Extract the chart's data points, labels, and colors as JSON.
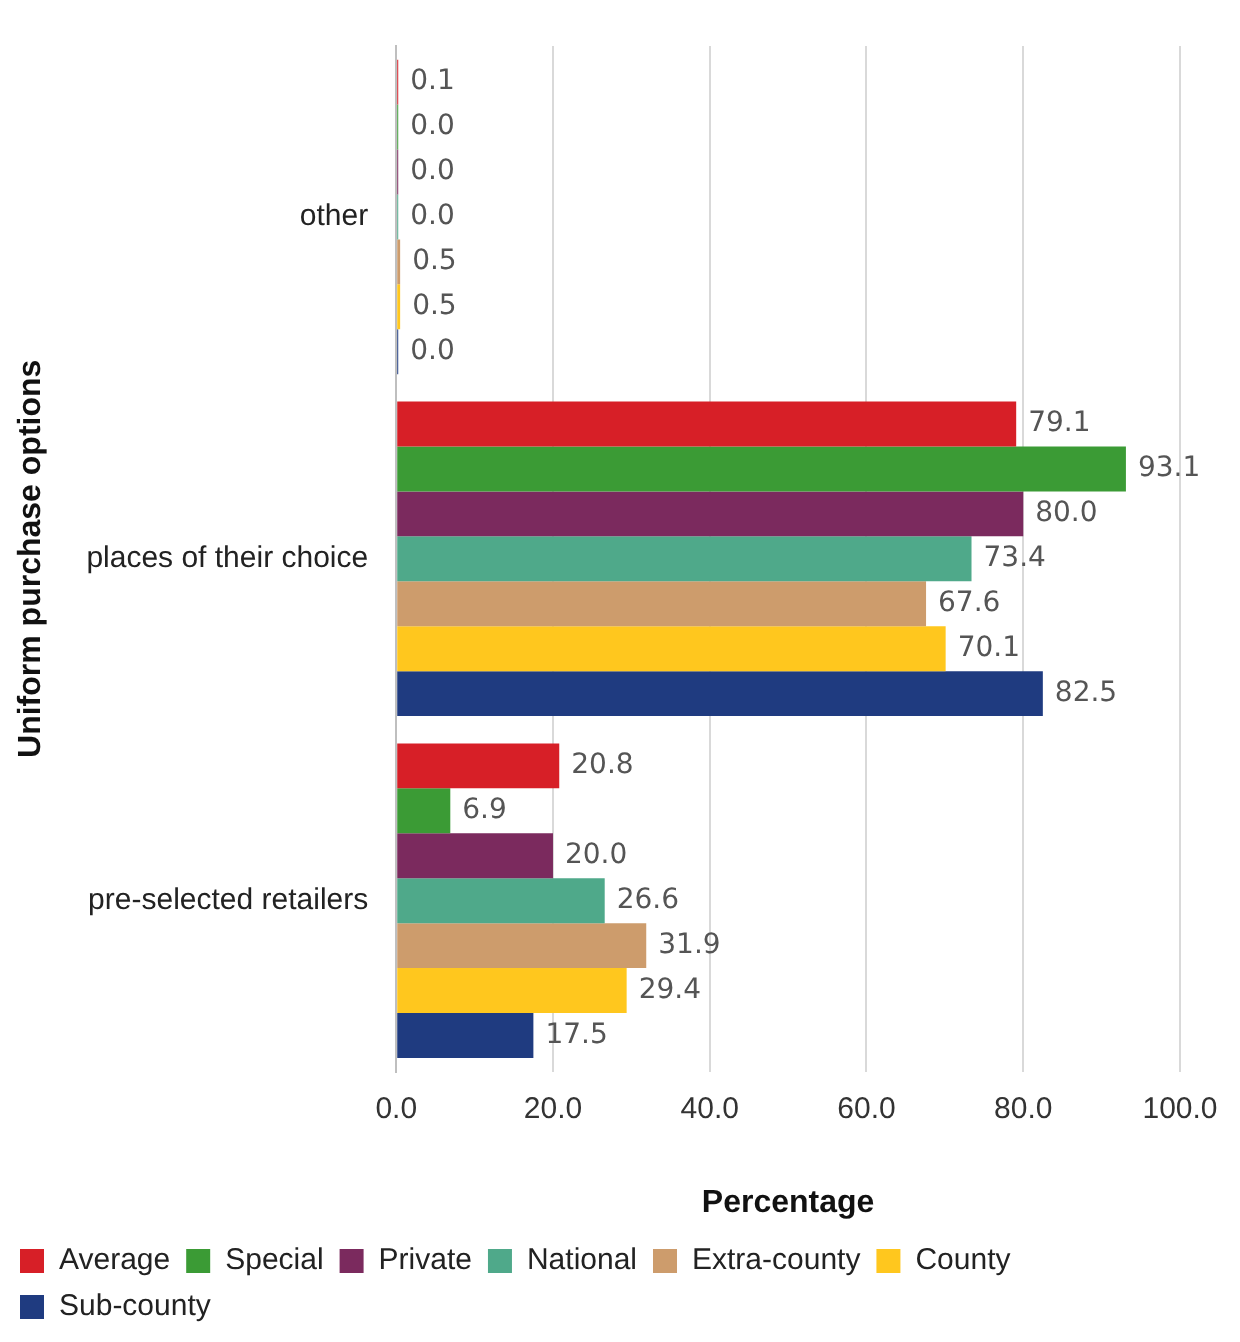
{
  "chart_data": {
    "type": "bar",
    "orientation": "horizontal",
    "xlabel": "Percentage",
    "ylabel": "Uniform purchase options",
    "categories": [
      "other",
      "places of their choice",
      "pre-selected retailers"
    ],
    "series": [
      {
        "name": "Average",
        "color": "#d71f27",
        "values": [
          0.1,
          79.1,
          20.8
        ],
        "value_labels": [
          "0.1",
          "79.1",
          "20.8"
        ]
      },
      {
        "name": "Special",
        "color": "#3b9b35",
        "values": [
          0,
          93.1,
          6.9
        ],
        "value_labels": [
          "0.0",
          "93.1",
          "6.9"
        ]
      },
      {
        "name": "Private",
        "color": "#7b2a5e",
        "values": [
          0,
          80,
          20
        ],
        "value_labels": [
          "0.0",
          "80.0",
          "20.0"
        ]
      },
      {
        "name": "National",
        "color": "#4fa98a",
        "values": [
          0,
          73.4,
          26.6
        ],
        "value_labels": [
          "0.0",
          "73.4",
          "26.6"
        ]
      },
      {
        "name": "Extra-county",
        "color": "#cd9c6c",
        "values": [
          0.5,
          67.6,
          31.9
        ],
        "value_labels": [
          "0.5",
          "67.6",
          "31.9"
        ]
      },
      {
        "name": "County",
        "color": "#ffc71e",
        "values": [
          0.5,
          70.1,
          29.4
        ],
        "value_labels": [
          "0.5",
          "70.1",
          "29.4"
        ]
      },
      {
        "name": "Sub-county",
        "color": "#1f3b80",
        "values": [
          0,
          82.5,
          17.5
        ],
        "value_labels": [
          "0.0",
          "82.5",
          "17.5"
        ]
      }
    ],
    "xlim": [
      0,
      100
    ],
    "xticks": [
      {
        "value": 0,
        "label": "0.0"
      },
      {
        "value": 20,
        "label": "20.0"
      },
      {
        "value": 40,
        "label": "40.0"
      },
      {
        "value": 60,
        "label": "60.0"
      },
      {
        "value": 80,
        "label": "80.0"
      },
      {
        "value": 100,
        "label": "100.0"
      }
    ],
    "grid": "x",
    "legend": "bottom"
  }
}
